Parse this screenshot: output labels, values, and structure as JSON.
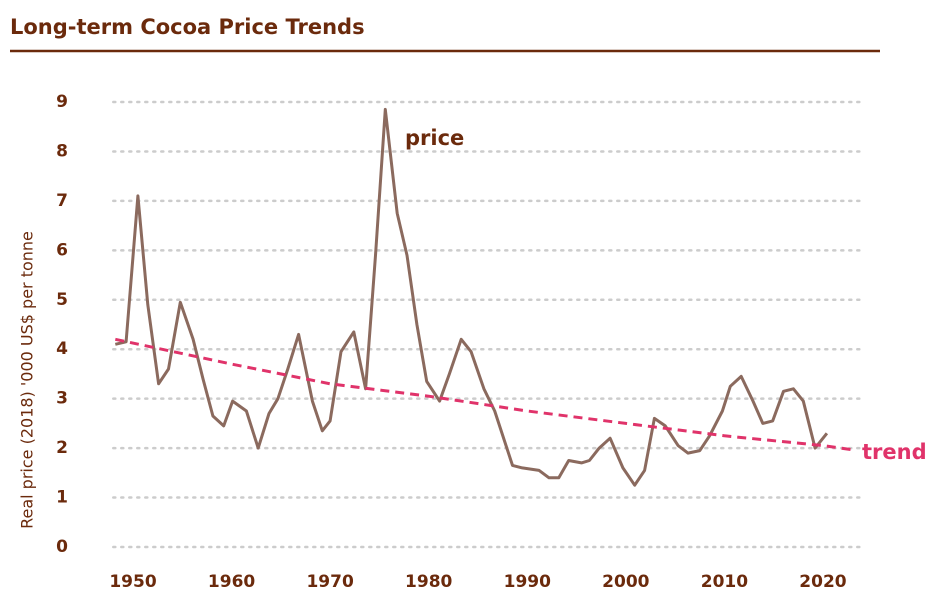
{
  "chart_data": {
    "type": "line",
    "title": "Long-term Cocoa Price Trends",
    "y_label": "Real price (2018) '000 US$ per tonne",
    "xlim": [
      1948,
      2024
    ],
    "ylim": [
      0,
      9
    ],
    "xticks": [
      1950,
      1960,
      1970,
      1980,
      1990,
      2000,
      2010,
      2020
    ],
    "yticks": [
      0,
      1,
      2,
      3,
      4,
      5,
      6,
      7,
      8,
      9
    ],
    "grid": true,
    "series": [
      {
        "name": "price",
        "color": "#8b6a5e",
        "x": [
          1948.2,
          1949.3,
          1950.5,
          1951.5,
          1952.6,
          1953.6,
          1954.8,
          1956.1,
          1957.1,
          1958.1,
          1959.2,
          1960.1,
          1961.5,
          1962.7,
          1963.8,
          1964.7,
          1965.7,
          1966.8,
          1968.2,
          1969.2,
          1970.0,
          1971.1,
          1972.4,
          1973.6,
          1974.6,
          1975.6,
          1976.8,
          1977.8,
          1978.8,
          1979.8,
          1981.1,
          1982.1,
          1983.3,
          1984.3,
          1985.6,
          1986.7,
          1988.5,
          1989.5,
          1991.2,
          1992.2,
          1993.2,
          1994.2,
          1995.5,
          1996.3,
          1997.3,
          1998.4,
          1999.7,
          2000.9,
          2001.9,
          2002.9,
          2004.0,
          2005.3,
          2006.3,
          2007.5,
          2008.5,
          2009.8,
          2010.6,
          2011.7,
          2012.9,
          2013.9,
          2014.9,
          2016.0,
          2017.0,
          2018.0,
          2019.2,
          2020.4
        ],
        "values": [
          4.1,
          4.15,
          7.1,
          4.9,
          3.3,
          3.6,
          4.95,
          4.2,
          3.4,
          2.65,
          2.45,
          2.95,
          2.75,
          2.0,
          2.7,
          3.0,
          3.6,
          4.3,
          2.95,
          2.35,
          2.55,
          3.95,
          4.35,
          3.2,
          5.9,
          8.85,
          6.75,
          5.9,
          4.5,
          3.35,
          2.95,
          3.5,
          4.2,
          3.95,
          3.2,
          2.75,
          1.65,
          1.6,
          1.55,
          1.4,
          1.4,
          1.75,
          1.7,
          1.75,
          2.0,
          2.2,
          1.6,
          1.25,
          1.55,
          2.6,
          2.45,
          2.05,
          1.9,
          1.95,
          2.25,
          2.75,
          3.25,
          3.45,
          2.95,
          2.5,
          2.55,
          3.15,
          3.2,
          2.95,
          2.0,
          2.3
        ]
      },
      {
        "name": "trend",
        "color": "#e0336a",
        "dashed": true,
        "x": [
          1948.2,
          1960,
          1970,
          1980,
          1990,
          2000,
          2010,
          2020,
          2022.9
        ],
        "values": [
          4.2,
          3.7,
          3.3,
          3.05,
          2.75,
          2.5,
          2.25,
          2.05,
          1.97
        ]
      }
    ]
  }
}
